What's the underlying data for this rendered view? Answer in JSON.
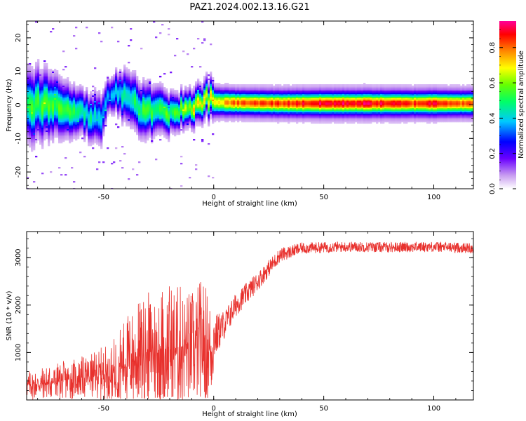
{
  "title": "PAZ1.2024.002.13.16.G21",
  "chart_data": [
    {
      "type": "heatmap",
      "xlabel": "Height of straight line (km)",
      "ylabel": "Frequency (Hz)",
      "xlim": [
        -85,
        118
      ],
      "ylim": [
        -25,
        25
      ],
      "x_ticks": [
        -50,
        0,
        50,
        100
      ],
      "y_ticks": [
        -20,
        -10,
        0,
        10,
        20
      ],
      "x_tick_labels": [
        "-50",
        "0",
        "50",
        "100"
      ],
      "y_tick_labels": [
        "-20",
        "-10",
        "0",
        "10",
        "20"
      ],
      "ridge": [
        {
          "x": -83,
          "f": 0.0,
          "w": 4.0,
          "a": 0.45
        },
        {
          "x": -75,
          "f": 0.5,
          "w": 3.5,
          "a": 0.5
        },
        {
          "x": -68,
          "f": -0.5,
          "w": 3.0,
          "a": 0.45
        },
        {
          "x": -60,
          "f": -2.0,
          "w": 2.5,
          "a": 0.4
        },
        {
          "x": -52,
          "f": -5.0,
          "w": 3.0,
          "a": 0.35
        },
        {
          "x": -48,
          "f": 4.5,
          "w": 2.0,
          "a": 0.3
        },
        {
          "x": -40,
          "f": 2.0,
          "w": 3.0,
          "a": 0.4
        },
        {
          "x": -32,
          "f": -1.0,
          "w": 3.0,
          "a": 0.45
        },
        {
          "x": -24,
          "f": -2.5,
          "w": 2.5,
          "a": 0.45
        },
        {
          "x": -16,
          "f": -1.0,
          "w": 2.0,
          "a": 0.5
        },
        {
          "x": -8,
          "f": 0.0,
          "w": 2.0,
          "a": 0.6
        },
        {
          "x": -4,
          "f": 2.5,
          "w": 2.0,
          "a": 0.55
        },
        {
          "x": 0,
          "f": 1.0,
          "w": 2.0,
          "a": 0.6
        },
        {
          "x": 10,
          "f": 0.8,
          "w": 1.8,
          "a": 0.72
        },
        {
          "x": 30,
          "f": 0.6,
          "w": 1.8,
          "a": 0.75
        },
        {
          "x": 50,
          "f": 0.6,
          "w": 1.8,
          "a": 0.8
        },
        {
          "x": 70,
          "f": 0.6,
          "w": 1.8,
          "a": 0.8
        },
        {
          "x": 90,
          "f": 0.6,
          "w": 1.8,
          "a": 0.75
        },
        {
          "x": 100,
          "f": 0.6,
          "w": 1.8,
          "a": 0.8
        },
        {
          "x": 118,
          "f": 0.6,
          "w": 1.8,
          "a": 0.7
        }
      ],
      "colorbar": {
        "label": "Normalized spectral amplitude",
        "ticks": [
          0.0,
          0.2,
          0.4,
          0.6,
          0.8
        ],
        "tick_labels": [
          "0.0",
          "0.2",
          "0.4",
          "0.6",
          "0.8"
        ],
        "range": [
          0,
          0.95
        ]
      }
    },
    {
      "type": "line",
      "xlabel": "Height of straight line (km)",
      "ylabel": "SNR (10 * v/v)",
      "xlim": [
        -85,
        118
      ],
      "ylim": [
        0,
        3550
      ],
      "x_ticks": [
        -50,
        0,
        50,
        100
      ],
      "y_ticks": [
        1000,
        2000,
        3000
      ],
      "x_tick_labels": [
        "-50",
        "0",
        "50",
        "100"
      ],
      "y_tick_labels": [
        "1000",
        "2000",
        "3000"
      ],
      "color": "#e8312d",
      "envelope": {
        "x": [
          -85,
          -70,
          -55,
          -45,
          -40,
          -30,
          -22,
          -15,
          -10,
          -5,
          -1,
          0,
          5,
          10,
          20,
          30,
          40,
          60,
          80,
          100,
          118
        ],
        "mean": [
          300,
          400,
          500,
          600,
          800,
          1000,
          1100,
          1100,
          1050,
          1200,
          1000,
          1300,
          1600,
          2000,
          2500,
          3050,
          3200,
          3230,
          3220,
          3230,
          3200
        ],
        "noise": [
          200,
          250,
          300,
          450,
          650,
          800,
          900,
          850,
          800,
          900,
          700,
          500,
          300,
          250,
          200,
          150,
          120,
          110,
          110,
          110,
          110
        ]
      }
    }
  ]
}
